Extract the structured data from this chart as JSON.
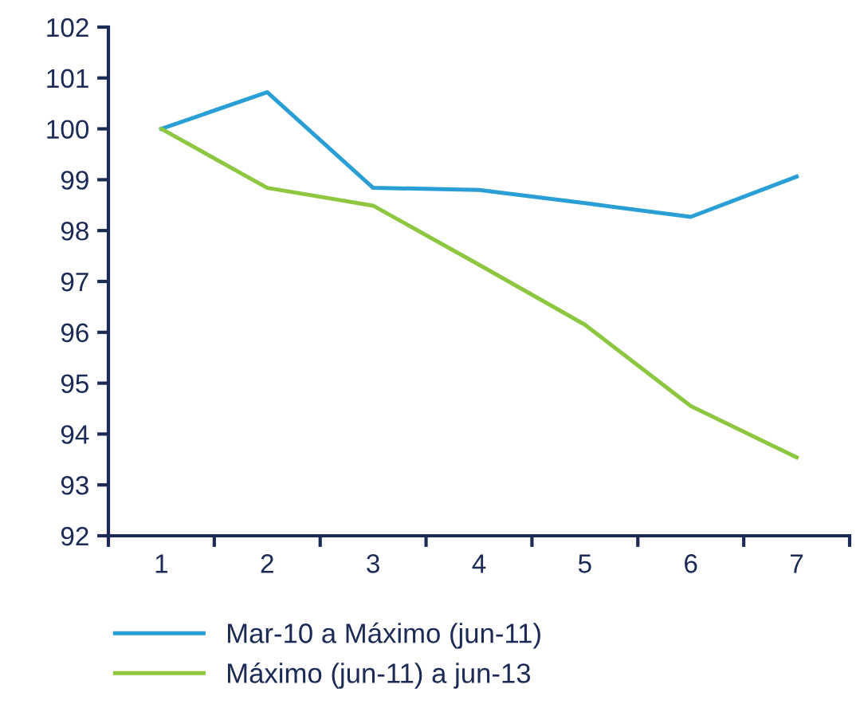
{
  "chart_data": {
    "type": "line",
    "categories": [
      "1",
      "2",
      "3",
      "4",
      "5",
      "6",
      "7"
    ],
    "series": [
      {
        "name": "Mar-10 a Máximo (jun-11)",
        "color": "#2a9fd6",
        "values": [
          100,
          100.72,
          98.84,
          98.8,
          98.54,
          98.27,
          99.06
        ]
      },
      {
        "name": "Máximo (jun-11) a jun-13",
        "color": "#8dc63f",
        "values": [
          100,
          98.84,
          98.49,
          97.33,
          96.15,
          94.55,
          93.54
        ]
      }
    ],
    "ylim": [
      92,
      102
    ],
    "yticks": [
      92,
      93,
      94,
      95,
      96,
      97,
      98,
      99,
      100,
      101,
      102
    ],
    "grid": false,
    "legend": "bottom",
    "marker": "none",
    "line_style": "solid"
  }
}
